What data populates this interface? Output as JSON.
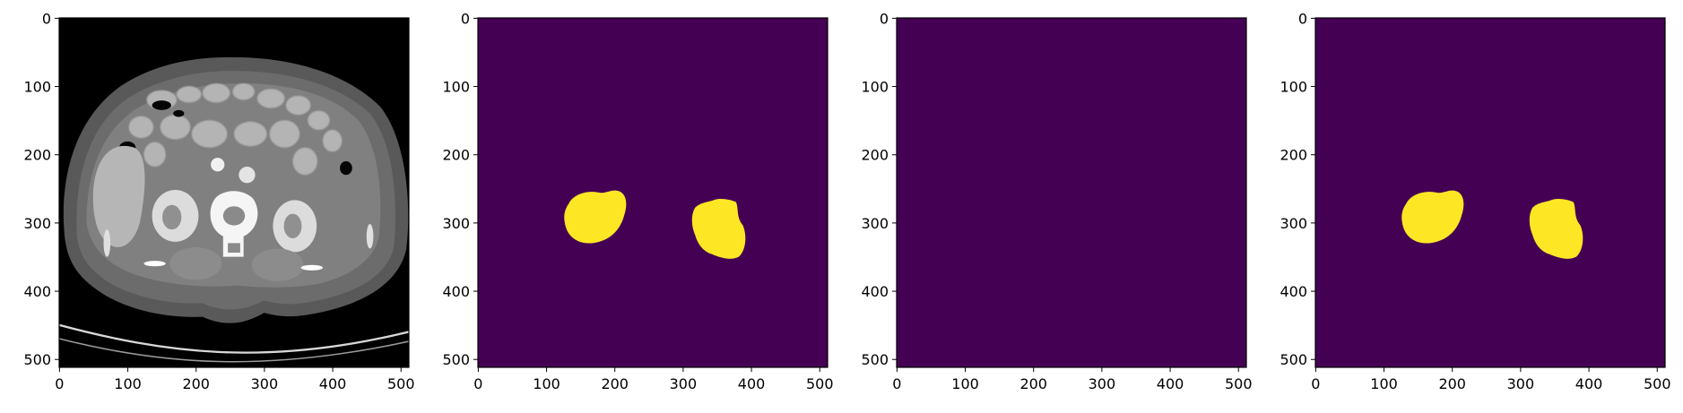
{
  "figure": {
    "background": "#ffffff",
    "panels": [
      {
        "kind": "ct-slice",
        "x_ticks": [
          {
            "value": 0,
            "label": "0"
          },
          {
            "value": 100,
            "label": "100"
          },
          {
            "value": 200,
            "label": "200"
          },
          {
            "value": 300,
            "label": "300"
          },
          {
            "value": 400,
            "label": "400"
          },
          {
            "value": 500,
            "label": "500"
          }
        ],
        "y_ticks": [
          {
            "value": 0,
            "label": "0"
          },
          {
            "value": 100,
            "label": "100"
          },
          {
            "value": 200,
            "label": "200"
          },
          {
            "value": 300,
            "label": "300"
          },
          {
            "value": 400,
            "label": "400"
          },
          {
            "value": 500,
            "label": "500"
          }
        ]
      },
      {
        "kind": "mask",
        "show_kidneys": true,
        "x_ticks": [
          {
            "value": 0,
            "label": "0"
          },
          {
            "value": 100,
            "label": "100"
          },
          {
            "value": 200,
            "label": "200"
          },
          {
            "value": 300,
            "label": "300"
          },
          {
            "value": 400,
            "label": "400"
          },
          {
            "value": 500,
            "label": "500"
          }
        ],
        "y_ticks": [
          {
            "value": 0,
            "label": "0"
          },
          {
            "value": 100,
            "label": "100"
          },
          {
            "value": 200,
            "label": "200"
          },
          {
            "value": 300,
            "label": "300"
          },
          {
            "value": 400,
            "label": "400"
          },
          {
            "value": 500,
            "label": "500"
          }
        ]
      },
      {
        "kind": "mask",
        "show_kidneys": false,
        "x_ticks": [
          {
            "value": 0,
            "label": "0"
          },
          {
            "value": 100,
            "label": "100"
          },
          {
            "value": 200,
            "label": "200"
          },
          {
            "value": 300,
            "label": "300"
          },
          {
            "value": 400,
            "label": "400"
          },
          {
            "value": 500,
            "label": "500"
          }
        ],
        "y_ticks": [
          {
            "value": 0,
            "label": "0"
          },
          {
            "value": 100,
            "label": "100"
          },
          {
            "value": 200,
            "label": "200"
          },
          {
            "value": 300,
            "label": "300"
          },
          {
            "value": 400,
            "label": "400"
          },
          {
            "value": 500,
            "label": "500"
          }
        ]
      },
      {
        "kind": "mask",
        "show_kidneys": true,
        "x_ticks": [
          {
            "value": 0,
            "label": "0"
          },
          {
            "value": 100,
            "label": "100"
          },
          {
            "value": 200,
            "label": "200"
          },
          {
            "value": 300,
            "label": "300"
          },
          {
            "value": 400,
            "label": "400"
          },
          {
            "value": 500,
            "label": "500"
          }
        ],
        "y_ticks": [
          {
            "value": 0,
            "label": "0"
          },
          {
            "value": 100,
            "label": "100"
          },
          {
            "value": 200,
            "label": "200"
          },
          {
            "value": 300,
            "label": "300"
          },
          {
            "value": 400,
            "label": "400"
          },
          {
            "value": 500,
            "label": "500"
          }
        ]
      }
    ],
    "colors": {
      "mask_background": "#440154",
      "mask_foreground": "#fde725",
      "ct_background": "#000000",
      "axis": "#000000",
      "tick_text": "#000000"
    }
  }
}
